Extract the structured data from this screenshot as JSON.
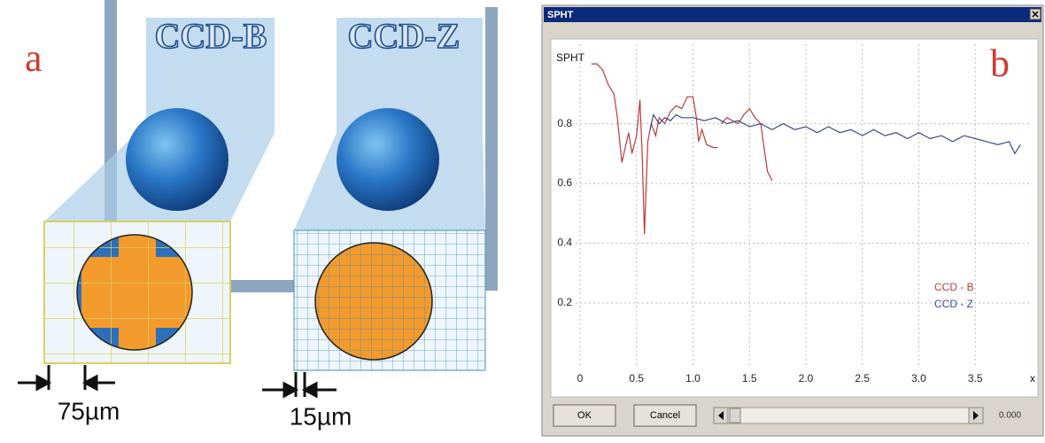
{
  "panel_a": {
    "letter": "a",
    "left_label": "CCD-B",
    "right_label": "CCD-Z",
    "left_pitch": "75µm",
    "right_pitch": "15µm"
  },
  "window": {
    "title": "SPHT",
    "ok": "OK",
    "cancel": "Cancel",
    "readout": "0.000"
  },
  "chart_data": {
    "type": "line",
    "panel_letter": "b",
    "ylabel": "SPHT",
    "xlabel": "x",
    "xlim": [
      0,
      4
    ],
    "ylim": [
      0,
      1.03
    ],
    "xticks": [
      0,
      0.5,
      {
        "value": 1,
        "label": "1.0"
      },
      1.5,
      {
        "value": 2,
        "label": "2.0"
      },
      2.5,
      {
        "value": 3,
        "label": "3.0"
      },
      3.5
    ],
    "yticks": [
      0.2,
      0.4,
      0.6,
      0.8
    ],
    "grid": true,
    "legend": "lower right",
    "series": [
      {
        "name": "CCD - B",
        "color": "#b83a3a",
        "x": [
          0.1,
          0.15,
          0.2,
          0.25,
          0.3,
          0.33,
          0.37,
          0.4,
          0.43,
          0.46,
          0.5,
          0.53,
          0.55,
          0.57,
          0.6,
          0.63,
          0.67,
          0.7,
          0.75,
          0.8,
          0.85,
          0.9,
          0.95,
          1.0,
          1.03,
          1.05,
          1.08,
          1.12,
          1.18,
          1.22,
          1.23,
          1.25,
          1.3,
          1.35,
          1.4,
          1.45,
          1.5,
          1.55,
          1.6,
          1.63,
          1.66,
          1.7
        ],
        "values": [
          1.0,
          1.0,
          0.98,
          0.93,
          0.9,
          0.82,
          0.67,
          0.72,
          0.77,
          0.7,
          0.76,
          0.88,
          0.7,
          0.43,
          0.74,
          0.8,
          0.76,
          0.82,
          0.8,
          0.84,
          0.86,
          0.85,
          0.89,
          0.89,
          0.82,
          0.74,
          0.78,
          0.73,
          0.72,
          0.72,
          null,
          0.8,
          0.82,
          0.81,
          0.8,
          0.83,
          0.85,
          0.82,
          0.8,
          0.72,
          0.64,
          0.61
        ]
      },
      {
        "name": "CCD - Z",
        "color": "#3c4a8c",
        "x": [
          0.62,
          0.65,
          0.7,
          0.75,
          0.8,
          0.85,
          0.9,
          0.95,
          1.0,
          1.1,
          1.2,
          1.3,
          1.4,
          1.5,
          1.6,
          1.7,
          1.8,
          1.9,
          2.0,
          2.1,
          2.2,
          2.3,
          2.4,
          2.5,
          2.6,
          2.7,
          2.8,
          2.9,
          3.0,
          3.1,
          3.2,
          3.3,
          3.4,
          3.5,
          3.6,
          3.7,
          3.8,
          3.85,
          3.9
        ],
        "values": [
          0.78,
          0.83,
          0.8,
          0.82,
          0.81,
          0.83,
          0.82,
          0.82,
          0.82,
          0.81,
          0.82,
          0.8,
          0.81,
          0.79,
          0.8,
          0.78,
          0.8,
          0.78,
          0.79,
          0.77,
          0.79,
          0.77,
          0.78,
          0.76,
          0.78,
          0.76,
          0.77,
          0.75,
          0.77,
          0.75,
          0.76,
          0.74,
          0.76,
          0.75,
          0.74,
          0.73,
          0.74,
          0.7,
          0.73
        ]
      }
    ]
  }
}
